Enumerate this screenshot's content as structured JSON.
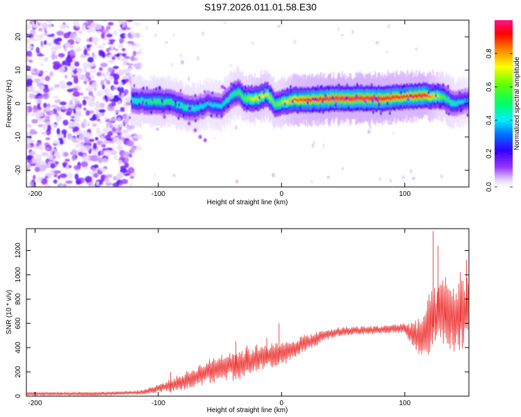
{
  "title": "S197.2026.011.01.58.E30",
  "colors": {
    "snr_line": "#ee3333",
    "spectro_background": "#ffffff",
    "axis": "#000000"
  },
  "chart_data": [
    {
      "type": "heatmap",
      "title": "S197.2026.011.01.58.E30",
      "xlabel": "Height of straight line (km)",
      "ylabel": "Frequency (Hz)",
      "xlim": [
        -207,
        152
      ],
      "ylim": [
        -25,
        25
      ],
      "xticks": [
        -200,
        -100,
        0,
        100
      ],
      "xtick_labels": [
        "-200",
        "-100",
        "0",
        "100"
      ],
      "yticks": [
        20,
        10,
        0,
        -10,
        -20
      ],
      "ytick_labels": [
        "20",
        "10",
        "0",
        "-10",
        "-20"
      ],
      "colorbar": {
        "label": "Normalized spectral amplitude",
        "range": [
          0,
          1
        ],
        "ticks": [
          0.0,
          0.2,
          0.4,
          0.6,
          0.8
        ],
        "tick_labels": [
          "0.0",
          "0.2",
          "0.4",
          "0.6",
          "0.8"
        ]
      },
      "noise_region_x": [
        -207,
        -112
      ],
      "signal_track": {
        "x": [
          -122,
          -110,
          -100,
          -90,
          -80,
          -70,
          -60,
          -50,
          -40,
          -35,
          -30,
          -20,
          -12,
          -5,
          0,
          10,
          20,
          40,
          60,
          80,
          100,
          115,
          130,
          140,
          152
        ],
        "freq": [
          1,
          0.5,
          0.5,
          0.5,
          -1,
          -1.5,
          0,
          -1,
          2.5,
          3.5,
          1.5,
          1.5,
          3,
          -0.5,
          0.5,
          1,
          1,
          1.5,
          1.5,
          1.5,
          2,
          2.5,
          2,
          0,
          1
        ],
        "amplitude": [
          0.45,
          0.5,
          0.55,
          0.5,
          0.5,
          0.45,
          0.4,
          0.4,
          0.5,
          0.55,
          0.6,
          0.75,
          0.7,
          0.6,
          0.65,
          0.85,
          0.9,
          0.97,
          0.97,
          0.95,
          0.9,
          0.95,
          0.6,
          0.45,
          0.35
        ]
      }
    },
    {
      "type": "line",
      "xlabel": "Height of straight line (km)",
      "ylabel": "SNR (10 * v/v)",
      "xlim": [
        -207,
        152
      ],
      "ylim": [
        0,
        1380
      ],
      "xticks": [
        -200,
        -100,
        0,
        100
      ],
      "xtick_labels": [
        "-200",
        "-100",
        "0",
        "100"
      ],
      "yticks": [
        0,
        200,
        400,
        600,
        800,
        1000,
        1200
      ],
      "ytick_labels": [
        "0",
        "200",
        "400",
        "600",
        "800",
        "1000",
        "1200"
      ],
      "envelope": {
        "x": [
          -207,
          -150,
          -115,
          -105,
          -90,
          -75,
          -60,
          -45,
          -30,
          -15,
          0,
          15,
          25,
          35,
          45,
          60,
          75,
          90,
          100,
          105,
          110,
          115,
          120,
          130,
          140,
          152
        ],
        "y": [
          20,
          20,
          30,
          50,
          90,
          140,
          200,
          250,
          270,
          330,
          340,
          420,
          460,
          500,
          530,
          540,
          545,
          555,
          560,
          520,
          480,
          500,
          600,
          700,
          650,
          700
        ]
      },
      "amplitude": {
        "x": [
          -207,
          -120,
          -100,
          -80,
          -60,
          -40,
          -20,
          0,
          20,
          40,
          80,
          100,
          110,
          120,
          150,
          152
        ],
        "y": [
          14,
          15,
          35,
          70,
          100,
          130,
          120,
          100,
          70,
          40,
          35,
          45,
          150,
          250,
          300,
          300
        ]
      },
      "spikes": [
        {
          "x": -90,
          "y": 200
        },
        {
          "x": -37,
          "y": 450
        },
        {
          "x": -28,
          "y": 415
        },
        {
          "x": -12,
          "y": 480
        },
        {
          "x": -2,
          "y": 600
        },
        {
          "x": 123,
          "y": 1360
        },
        {
          "x": 127,
          "y": 1240
        },
        {
          "x": 133,
          "y": 980
        },
        {
          "x": 145,
          "y": 1020
        },
        {
          "x": 150,
          "y": 1120
        }
      ]
    }
  ]
}
